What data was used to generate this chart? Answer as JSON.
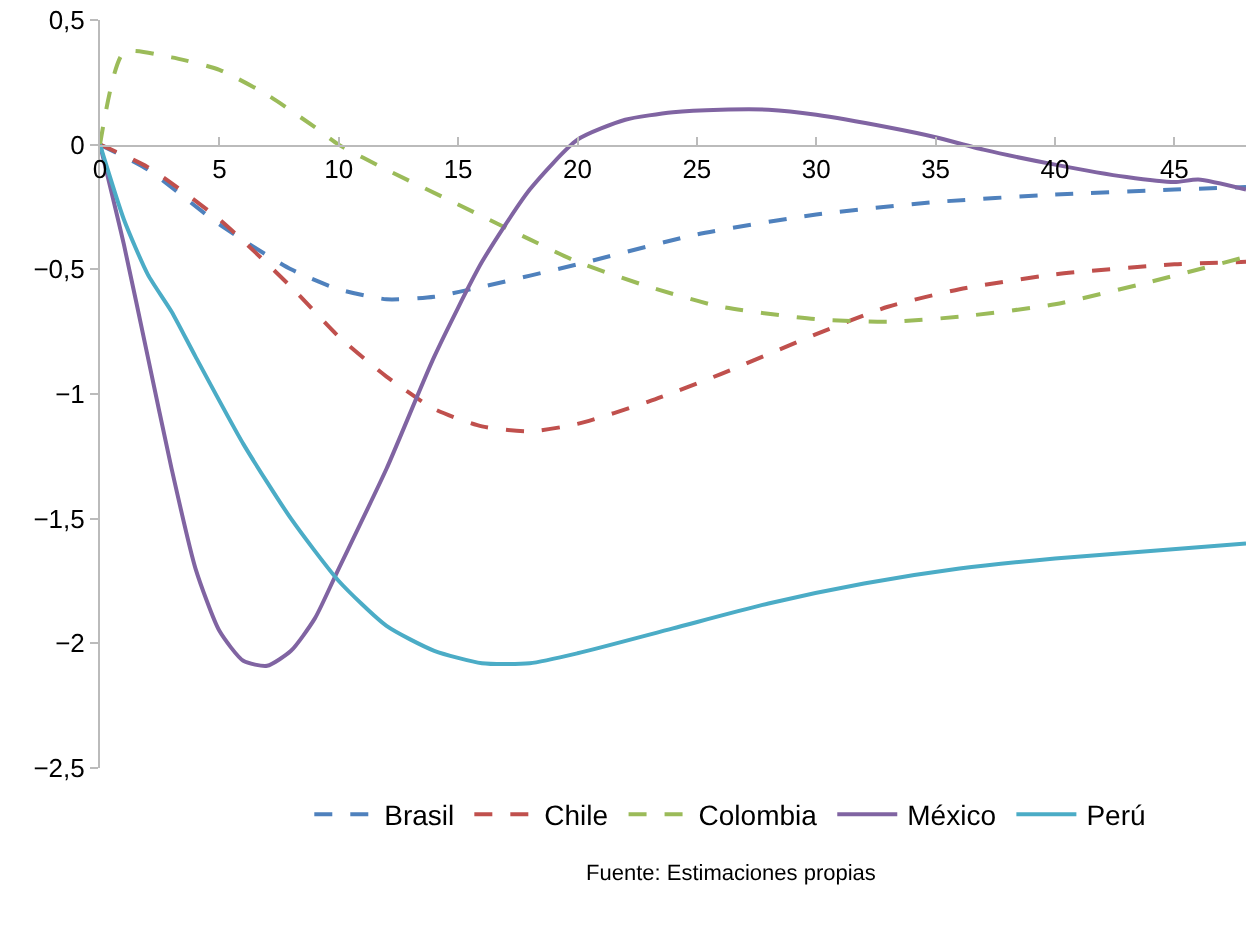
{
  "chart_data": {
    "type": "line",
    "xlim": [
      0,
      48
    ],
    "xticks": [
      0,
      5,
      10,
      15,
      20,
      25,
      30,
      35,
      40,
      45
    ],
    "ylim": [
      -2.5,
      0.5
    ],
    "yticks": [
      {
        "value": 0.5,
        "label": "0,5"
      },
      {
        "value": 0,
        "label": "0"
      },
      {
        "value": -0.5,
        "label": "−0,5"
      },
      {
        "value": -1,
        "label": "−1"
      },
      {
        "value": -1.5,
        "label": "−1,5"
      },
      {
        "value": -2,
        "label": "−2"
      },
      {
        "value": -2.5,
        "label": "−2,5"
      }
    ],
    "legend": "bottom",
    "marker": "none",
    "annotations": [
      "Fuente: Estimaciones propias"
    ],
    "series": [
      {
        "name": "Brasil",
        "color": "#4f81bd",
        "line_style": "dashed",
        "x": [
          0,
          2,
          5,
          8,
          10,
          12,
          14,
          16,
          20,
          25,
          30,
          35,
          40,
          45,
          48
        ],
        "values": [
          0,
          -0.1,
          -0.32,
          -0.5,
          -0.58,
          -0.62,
          -0.61,
          -0.57,
          -0.48,
          -0.36,
          -0.28,
          -0.23,
          -0.2,
          -0.18,
          -0.17
        ]
      },
      {
        "name": "Chile",
        "color": "#c0504d",
        "line_style": "dashed",
        "x": [
          0,
          2,
          5,
          8,
          10,
          12,
          14,
          16,
          18,
          20,
          23,
          26,
          30,
          33,
          36,
          40,
          45,
          48
        ],
        "values": [
          0,
          -0.09,
          -0.3,
          -0.57,
          -0.77,
          -0.93,
          -1.06,
          -1.13,
          -1.15,
          -1.12,
          -1.03,
          -0.92,
          -0.76,
          -0.65,
          -0.58,
          -0.52,
          -0.48,
          -0.47
        ]
      },
      {
        "name": "Colombia",
        "color": "#9bbb59",
        "line_style": "dashed",
        "x": [
          0,
          1,
          3,
          5,
          7,
          9,
          10,
          12,
          15,
          18,
          20,
          23,
          26,
          30,
          33,
          36,
          40,
          44,
          48
        ],
        "values": [
          0,
          0.37,
          0.35,
          0.3,
          0.2,
          0.07,
          0,
          -0.1,
          -0.24,
          -0.38,
          -0.47,
          -0.57,
          -0.65,
          -0.7,
          -0.71,
          -0.69,
          -0.64,
          -0.55,
          -0.45
        ]
      },
      {
        "name": "México",
        "color": "#8064a2",
        "line_style": "solid",
        "x": [
          0,
          1,
          2,
          3,
          4,
          5,
          6,
          7,
          8,
          9,
          10,
          12,
          14,
          16,
          18,
          20,
          22,
          24,
          26,
          28,
          30,
          33,
          35,
          37,
          40,
          43,
          45,
          46,
          48
        ],
        "values": [
          0,
          -0.4,
          -0.85,
          -1.3,
          -1.7,
          -1.95,
          -2.07,
          -2.09,
          -2.03,
          -1.9,
          -1.7,
          -1.3,
          -0.85,
          -0.47,
          -0.18,
          0.02,
          0.1,
          0.13,
          0.14,
          0.14,
          0.12,
          0.07,
          0.03,
          -0.02,
          -0.08,
          -0.13,
          -0.15,
          -0.14,
          -0.18
        ]
      },
      {
        "name": "Perú",
        "color": "#4bacc6",
        "line_style": "solid",
        "x": [
          0,
          1,
          2,
          3,
          4,
          6,
          8,
          10,
          12,
          14,
          16,
          18,
          20,
          24,
          28,
          32,
          36,
          40,
          44,
          48
        ],
        "values": [
          0,
          -0.3,
          -0.52,
          -0.67,
          -0.85,
          -1.2,
          -1.5,
          -1.75,
          -1.93,
          -2.03,
          -2.08,
          -2.08,
          -2.04,
          -1.94,
          -1.84,
          -1.76,
          -1.7,
          -1.66,
          -1.63,
          -1.6
        ]
      }
    ]
  }
}
